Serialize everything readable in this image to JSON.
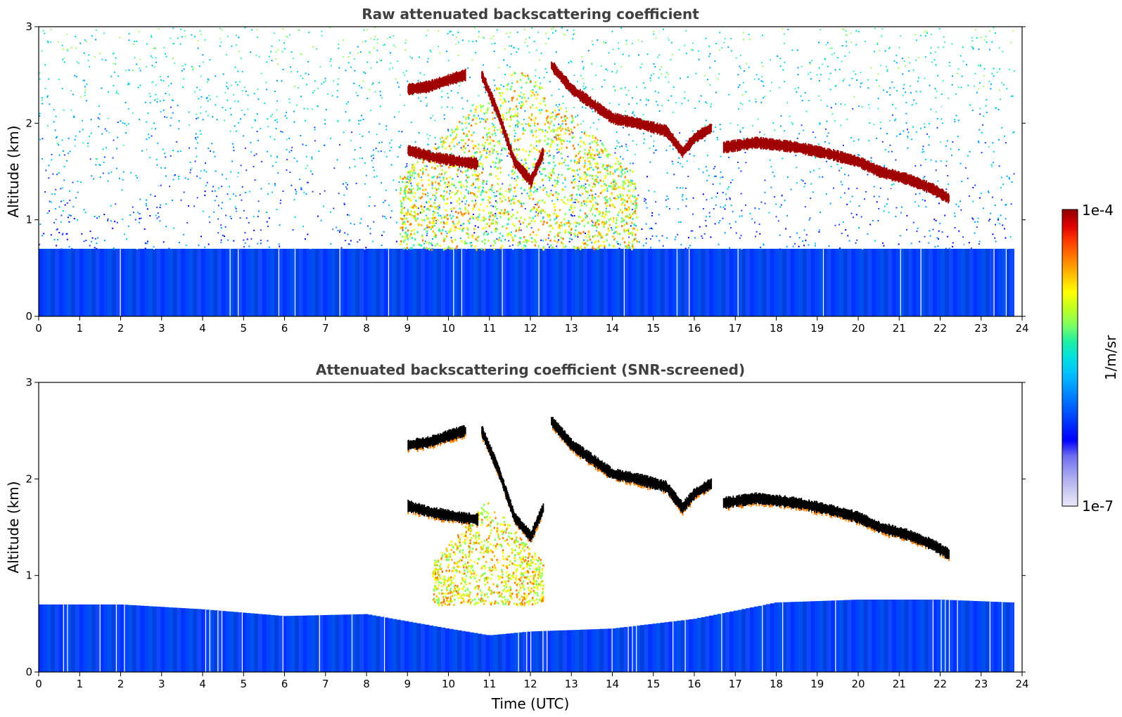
{
  "chart_data": [
    {
      "type": "heatmap",
      "title": "Raw attenuated backscattering coefficient",
      "xlabel": "",
      "ylabel": "Altitude (km)",
      "xlim": [
        0,
        24
      ],
      "ylim": [
        0,
        3
      ],
      "xticks": [
        "0",
        "1",
        "2",
        "3",
        "4",
        "5",
        "6",
        "7",
        "8",
        "9",
        "10",
        "11",
        "12",
        "13",
        "14",
        "15",
        "16",
        "17",
        "18",
        "19",
        "20",
        "21",
        "22",
        "23",
        "24"
      ],
      "yticks": [
        "0",
        "1",
        "2",
        "3"
      ],
      "features": {
        "boundary_layer": {
          "x_range": [
            0,
            23.8
          ],
          "top_km": 0.7
        },
        "noise_fill": {
          "x_range": [
            0,
            23.8
          ],
          "y_range": [
            0.7,
            3
          ]
        },
        "aerosol_plume": {
          "x_range": [
            8.8,
            14.6
          ],
          "y_range": [
            0.7,
            2.6
          ]
        },
        "cloud_layers": [
          {
            "x": [
              9.0,
              9.5,
              10.0,
              10.4
            ],
            "y": [
              2.35,
              2.38,
              2.45,
              2.5
            ]
          },
          {
            "x": [
              9.0,
              9.6,
              10.3,
              10.7
            ],
            "y": [
              1.72,
              1.65,
              1.6,
              1.58
            ]
          },
          {
            "x": [
              10.8,
              11.2,
              11.6,
              12.0,
              12.3
            ],
            "y": [
              2.5,
              2.1,
              1.6,
              1.4,
              1.7
            ]
          },
          {
            "x": [
              12.5,
              13.0,
              13.5,
              14.0,
              14.6,
              15.3,
              15.7,
              16.0,
              16.4
            ],
            "y": [
              2.6,
              2.35,
              2.2,
              2.05,
              2.0,
              1.92,
              1.7,
              1.85,
              1.95
            ]
          },
          {
            "x": [
              16.7,
              17.5,
              18.5,
              19.3,
              20.0,
              20.5,
              21.2,
              21.8,
              22.2
            ],
            "y": [
              1.75,
              1.8,
              1.75,
              1.68,
              1.6,
              1.5,
              1.42,
              1.32,
              1.22
            ]
          }
        ]
      }
    },
    {
      "type": "heatmap",
      "title": "Attenuated backscattering coefficient (SNR-screened)",
      "xlabel": "Time (UTC)",
      "ylabel": "Altitude (km)",
      "xlim": [
        0,
        24
      ],
      "ylim": [
        0,
        3
      ],
      "xticks": [
        "0",
        "1",
        "2",
        "3",
        "4",
        "5",
        "6",
        "7",
        "8",
        "9",
        "10",
        "11",
        "12",
        "13",
        "14",
        "15",
        "16",
        "17",
        "18",
        "19",
        "20",
        "21",
        "22",
        "23",
        "24"
      ],
      "yticks": [
        "0",
        "1",
        "2",
        "3"
      ],
      "features": {
        "boundary_layer_top": {
          "x": [
            0,
            2,
            4,
            6,
            8,
            10,
            11,
            12,
            14,
            16,
            18,
            20,
            22,
            23.8
          ],
          "top_km": [
            0.7,
            0.7,
            0.65,
            0.58,
            0.6,
            0.45,
            0.38,
            0.42,
            0.45,
            0.55,
            0.72,
            0.75,
            0.75,
            0.72
          ]
        },
        "aerosol_plume": {
          "x_range": [
            9.6,
            12.3
          ],
          "y_range": [
            0.7,
            1.8
          ]
        },
        "cloud_layers_same_as_raw": true
      }
    }
  ],
  "colorbar": {
    "max_label": "1e-4",
    "min_label": "1e-7",
    "unit_label": "1/m/sr",
    "colormap": [
      "#e8e8f8",
      "#c8c8f0",
      "#a0a0f0",
      "#7070f0",
      "#0000ff",
      "#0030ff",
      "#0060ff",
      "#0090ff",
      "#00c0ff",
      "#00e0e0",
      "#20f0a0",
      "#80ff60",
      "#c0ff20",
      "#ffff00",
      "#ffc000",
      "#ff8000",
      "#ff4000",
      "#e00000",
      "#900000"
    ]
  }
}
